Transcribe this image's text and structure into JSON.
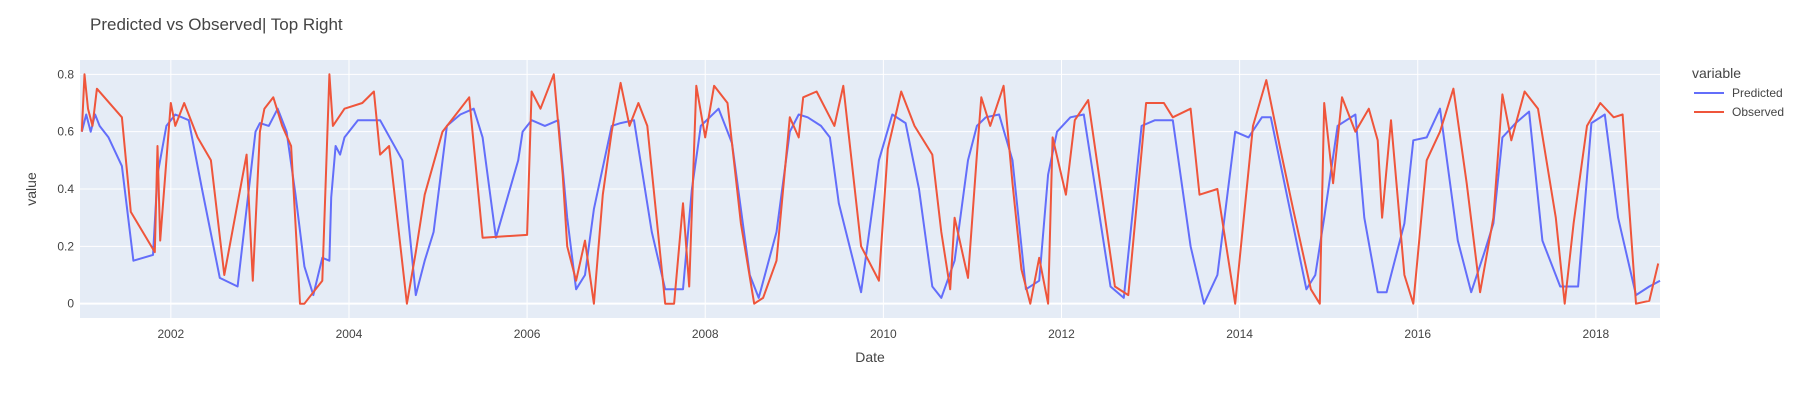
{
  "chart_data": {
    "type": "line",
    "title": "Predicted vs Observed| Top Right",
    "xlabel": "Date",
    "ylabel": "value",
    "xlim": [
      2000.98,
      2018.72
    ],
    "ylim": [
      -0.05,
      0.85
    ],
    "x_ticks": [
      2002,
      2004,
      2006,
      2008,
      2010,
      2012,
      2014,
      2016,
      2018
    ],
    "y_ticks": [
      0,
      0.2,
      0.4,
      0.6,
      0.8
    ],
    "y_tick_labels": [
      "0",
      "0.2",
      "0.4",
      "0.6",
      "0.8"
    ],
    "grid": true,
    "legend": {
      "title": "variable",
      "position": "right"
    },
    "colors": {
      "plot_bg": "#e5ecf6",
      "grid": "#ffffff"
    },
    "series": [
      {
        "name": "Predicted",
        "color": "#636efa",
        "x": [
          2001.0,
          2001.05,
          2001.1,
          2001.15,
          2001.2,
          2001.3,
          2001.45,
          2001.58,
          2001.8,
          2001.85,
          2001.95,
          2002.05,
          2002.2,
          2002.35,
          2002.55,
          2002.75,
          2002.95,
          2003.0,
          2003.1,
          2003.2,
          2003.3,
          2003.4,
          2003.5,
          2003.6,
          2003.7,
          2003.78,
          2003.8,
          2003.85,
          2003.9,
          2003.95,
          2004.1,
          2004.22,
          2004.35,
          2004.6,
          2004.75,
          2004.85,
          2004.95,
          2005.1,
          2005.25,
          2005.4,
          2005.5,
          2005.65,
          2005.9,
          2005.95,
          2006.05,
          2006.2,
          2006.35,
          2006.45,
          2006.55,
          2006.65,
          2006.75,
          2006.95,
          2007.05,
          2007.2,
          2007.4,
          2007.55,
          2007.75,
          2007.85,
          2007.95,
          2008.15,
          2008.3,
          2008.5,
          2008.6,
          2008.8,
          2008.95,
          2009.05,
          2009.15,
          2009.3,
          2009.4,
          2009.5,
          2009.75,
          2009.95,
          2010.1,
          2010.25,
          2010.4,
          2010.55,
          2010.65,
          2010.8,
          2010.95,
          2011.05,
          2011.15,
          2011.3,
          2011.45,
          2011.6,
          2011.75,
          2011.85,
          2011.95,
          2012.1,
          2012.25,
          2012.55,
          2012.7,
          2012.9,
          2013.05,
          2013.25,
          2013.45,
          2013.6,
          2013.75,
          2013.95,
          2014.1,
          2014.25,
          2014.35,
          2014.55,
          2014.75,
          2014.85,
          2014.95,
          2015.1,
          2015.2,
          2015.3,
          2015.4,
          2015.55,
          2015.65,
          2015.85,
          2015.95,
          2016.1,
          2016.25,
          2016.45,
          2016.6,
          2016.75,
          2016.85,
          2016.95,
          2017.1,
          2017.25,
          2017.4,
          2017.6,
          2017.8,
          2017.95,
          2018.1,
          2018.25,
          2018.45,
          2018.6,
          2018.72
        ],
        "y": [
          0.6,
          0.66,
          0.6,
          0.66,
          0.62,
          0.58,
          0.48,
          0.15,
          0.17,
          0.45,
          0.62,
          0.66,
          0.64,
          0.4,
          0.09,
          0.06,
          0.6,
          0.63,
          0.62,
          0.68,
          0.6,
          0.38,
          0.13,
          0.03,
          0.16,
          0.15,
          0.37,
          0.55,
          0.52,
          0.58,
          0.64,
          0.64,
          0.64,
          0.5,
          0.03,
          0.15,
          0.25,
          0.62,
          0.66,
          0.68,
          0.58,
          0.23,
          0.5,
          0.6,
          0.64,
          0.62,
          0.64,
          0.3,
          0.05,
          0.1,
          0.33,
          0.62,
          0.63,
          0.64,
          0.25,
          0.05,
          0.05,
          0.4,
          0.62,
          0.68,
          0.56,
          0.1,
          0.02,
          0.25,
          0.6,
          0.66,
          0.65,
          0.62,
          0.58,
          0.35,
          0.04,
          0.5,
          0.66,
          0.63,
          0.4,
          0.06,
          0.02,
          0.15,
          0.5,
          0.62,
          0.65,
          0.66,
          0.5,
          0.05,
          0.08,
          0.45,
          0.6,
          0.65,
          0.66,
          0.06,
          0.02,
          0.62,
          0.64,
          0.64,
          0.2,
          0.0,
          0.1,
          0.6,
          0.58,
          0.65,
          0.65,
          0.35,
          0.05,
          0.1,
          0.3,
          0.62,
          0.64,
          0.66,
          0.3,
          0.04,
          0.04,
          0.28,
          0.57,
          0.58,
          0.68,
          0.22,
          0.04,
          0.18,
          0.28,
          0.58,
          0.63,
          0.67,
          0.22,
          0.06,
          0.06,
          0.63,
          0.66,
          0.3,
          0.03,
          0.06,
          0.08
        ]
      },
      {
        "name": "Observed",
        "color": "#ef553b",
        "x": [
          2001.0,
          2001.03,
          2001.07,
          2001.12,
          2001.17,
          2001.45,
          2001.55,
          2001.82,
          2001.85,
          2001.88,
          2002.0,
          2002.05,
          2002.15,
          2002.3,
          2002.45,
          2002.6,
          2002.85,
          2002.92,
          2003.0,
          2003.05,
          2003.15,
          2003.25,
          2003.35,
          2003.45,
          2003.5,
          2003.6,
          2003.7,
          2003.78,
          2003.82,
          2003.95,
          2004.15,
          2004.28,
          2004.35,
          2004.45,
          2004.65,
          2004.75,
          2004.85,
          2005.05,
          2005.2,
          2005.35,
          2005.5,
          2006.0,
          2006.05,
          2006.15,
          2006.3,
          2006.4,
          2006.45,
          2006.55,
          2006.65,
          2006.75,
          2006.85,
          2006.95,
          2007.05,
          2007.15,
          2007.25,
          2007.35,
          2007.55,
          2007.65,
          2007.75,
          2007.82,
          2007.9,
          2008.0,
          2008.1,
          2008.25,
          2008.4,
          2008.55,
          2008.65,
          2008.8,
          2008.95,
          2009.05,
          2009.1,
          2009.25,
          2009.45,
          2009.55,
          2009.75,
          2009.95,
          2010.05,
          2010.2,
          2010.35,
          2010.55,
          2010.65,
          2010.75,
          2010.8,
          2010.95,
          2011.05,
          2011.1,
          2011.2,
          2011.35,
          2011.45,
          2011.55,
          2011.65,
          2011.75,
          2011.85,
          2011.9,
          2012.05,
          2012.15,
          2012.3,
          2012.6,
          2012.75,
          2012.95,
          2013.15,
          2013.25,
          2013.45,
          2013.55,
          2013.75,
          2013.95,
          2014.15,
          2014.3,
          2014.45,
          2014.6,
          2014.8,
          2014.9,
          2014.95,
          2015.05,
          2015.15,
          2015.3,
          2015.45,
          2015.55,
          2015.6,
          2015.7,
          2015.85,
          2015.95,
          2016.1,
          2016.25,
          2016.4,
          2016.55,
          2016.7,
          2016.85,
          2016.95,
          2017.05,
          2017.2,
          2017.35,
          2017.55,
          2017.65,
          2017.75,
          2017.9,
          2018.05,
          2018.2,
          2018.3,
          2018.45,
          2018.6,
          2018.7
        ],
        "y": [
          0.6,
          0.8,
          0.68,
          0.62,
          0.75,
          0.65,
          0.32,
          0.18,
          0.55,
          0.22,
          0.7,
          0.62,
          0.7,
          0.58,
          0.5,
          0.1,
          0.52,
          0.08,
          0.6,
          0.68,
          0.72,
          0.62,
          0.55,
          0.0,
          0.0,
          0.04,
          0.08,
          0.8,
          0.62,
          0.68,
          0.7,
          0.74,
          0.52,
          0.55,
          0.0,
          0.18,
          0.38,
          0.6,
          0.66,
          0.72,
          0.23,
          0.24,
          0.74,
          0.68,
          0.8,
          0.45,
          0.2,
          0.08,
          0.22,
          0.0,
          0.38,
          0.6,
          0.77,
          0.62,
          0.7,
          0.62,
          0.0,
          0.0,
          0.35,
          0.06,
          0.76,
          0.58,
          0.76,
          0.7,
          0.28,
          0.0,
          0.02,
          0.15,
          0.65,
          0.58,
          0.72,
          0.74,
          0.62,
          0.76,
          0.2,
          0.08,
          0.54,
          0.74,
          0.62,
          0.52,
          0.25,
          0.05,
          0.3,
          0.09,
          0.52,
          0.72,
          0.62,
          0.76,
          0.42,
          0.12,
          0.0,
          0.16,
          0.0,
          0.58,
          0.38,
          0.64,
          0.71,
          0.06,
          0.03,
          0.7,
          0.7,
          0.65,
          0.68,
          0.38,
          0.4,
          0.0,
          0.62,
          0.78,
          0.55,
          0.33,
          0.05,
          0.0,
          0.7,
          0.42,
          0.72,
          0.6,
          0.68,
          0.57,
          0.3,
          0.64,
          0.1,
          0.0,
          0.5,
          0.6,
          0.75,
          0.42,
          0.04,
          0.3,
          0.73,
          0.57,
          0.74,
          0.68,
          0.3,
          0.0,
          0.28,
          0.62,
          0.7,
          0.65,
          0.66,
          0.0,
          0.01,
          0.14
        ]
      }
    ]
  }
}
